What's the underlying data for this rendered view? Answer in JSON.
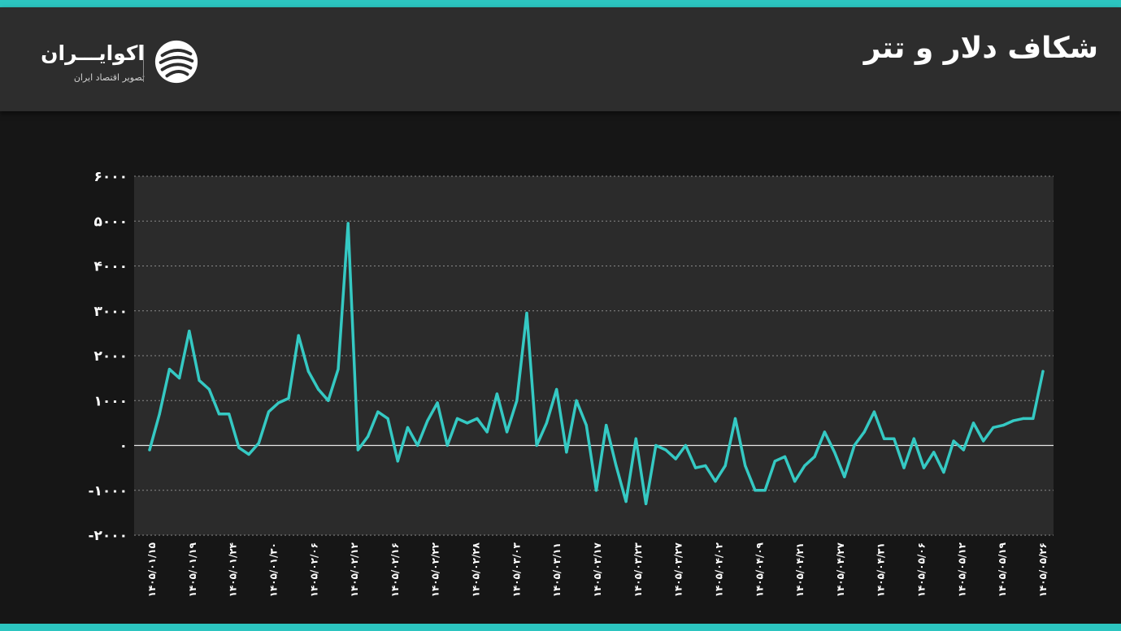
{
  "header": {
    "title": "شکاف دلار و تتر"
  },
  "logo": {
    "name": "اکوایـــران",
    "tagline": "تصویر اقتصاد ایران",
    "icon": "ecoiran-logo-icon"
  },
  "colors": {
    "accent": "#2cc5c0",
    "line": "#35c9c3",
    "plot_background": "#2b2b2b",
    "page_background": "#161616",
    "header_background": "#2d2d2d"
  },
  "chart_data": {
    "type": "line",
    "title": "",
    "xlabel": "",
    "ylabel": "",
    "ylim": [
      -2000,
      6000
    ],
    "yticks": [
      6000,
      5000,
      4000,
      3000,
      2000,
      1000,
      0,
      -1000,
      -2000
    ],
    "ytick_labels": [
      "۶۰۰۰",
      "۵۰۰۰",
      "۴۰۰۰",
      "۳۰۰۰",
      "۲۰۰۰",
      "۱۰۰۰",
      "۰",
      "-۱۰۰۰",
      "-۲۰۰۰"
    ],
    "grid": true,
    "xtick_labels": [
      "۱۴۰۵/۰۱/۱۵",
      "۱۴۰۵/۰۱/۱۹",
      "۱۴۰۵/۰۱/۲۴",
      "۱۴۰۵/۰۱/۳۰",
      "۱۴۰۵/۰۲/۰۶",
      "۱۴۰۵/۰۲/۱۲",
      "۱۴۰۵/۰۲/۱۶",
      "۱۴۰۵/۰۲/۲۲",
      "۱۴۰۵/۰۲/۲۸",
      "۱۴۰۵/۰۳/۰۳",
      "۱۴۰۵/۰۳/۱۱",
      "۱۴۰۵/۰۳/۱۷",
      "۱۴۰۵/۰۳/۲۳",
      "۱۴۰۵/۰۳/۲۷",
      "۱۴۰۵/۰۴/۰۲",
      "۱۴۰۵/۰۴/۰۹",
      "۱۴۰۵/۰۴/۲۱",
      "۱۴۰۵/۰۴/۲۷",
      "۱۴۰۵/۰۴/۳۱",
      "۱۴۰۵/۰۵/۰۶",
      "۱۴۰۵/۰۵/۱۲",
      "۱۴۰۵/۰۵/۱۹",
      "۱۴۰۵/۰۵/۲۶"
    ],
    "series": [
      {
        "values": [
          -100,
          700,
          1700,
          1500,
          2550,
          1450,
          1250,
          700,
          700,
          -50,
          -200,
          50,
          750,
          950,
          1050,
          2450,
          1650,
          1250,
          1000,
          1700,
          4950,
          -100,
          200,
          750,
          600,
          -350,
          400,
          0,
          550,
          950,
          0,
          600,
          500,
          600,
          300,
          1150,
          300,
          1000,
          2950,
          0,
          500,
          1250,
          -150,
          1000,
          450,
          -1000,
          450,
          -450,
          -1250,
          150,
          -1300,
          0,
          -100,
          -300,
          0,
          -500,
          -450,
          -800,
          -450,
          600,
          -450,
          -1000,
          -1000,
          -350,
          -250,
          -800,
          -450,
          -250,
          300,
          -150,
          -700,
          0,
          300,
          750,
          150,
          150,
          -500,
          150,
          -500,
          -150,
          -600,
          100,
          -100,
          500,
          100,
          400,
          450,
          550,
          600,
          600,
          1650
        ]
      }
    ]
  }
}
